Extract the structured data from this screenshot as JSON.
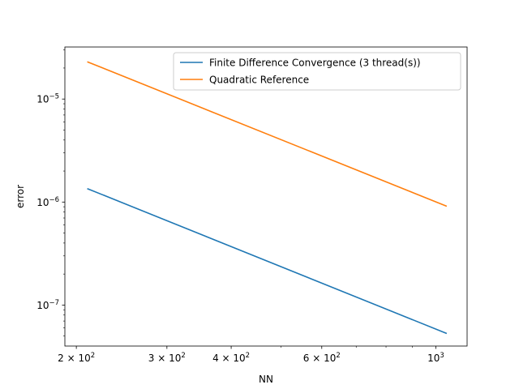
{
  "chart_data": {
    "type": "line",
    "xlabel": "NN",
    "ylabel": "error",
    "xscale": "log",
    "yscale": "log",
    "xlim": [
      190,
      1150
    ],
    "ylim": [
      4e-08,
      3.2e-05
    ],
    "grid": false,
    "legend_position": "top-right",
    "x_major_ticks": [
      {
        "value": 200,
        "mantissa": "2",
        "base": "10",
        "exp": "2"
      },
      {
        "value": 300,
        "mantissa": "3",
        "base": "10",
        "exp": "2"
      },
      {
        "value": 400,
        "mantissa": "4",
        "base": "10",
        "exp": "2"
      },
      {
        "value": 600,
        "mantissa": "6",
        "base": "10",
        "exp": "2"
      },
      {
        "value": 1000,
        "mantissa": "",
        "base": "10",
        "exp": "3"
      }
    ],
    "x_minor_ticks": [
      500,
      700,
      800,
      900
    ],
    "y_major_ticks": [
      {
        "value": 1e-07,
        "base": "10",
        "exp": "−7"
      },
      {
        "value": 1e-06,
        "base": "10",
        "exp": "−6"
      },
      {
        "value": 1e-05,
        "base": "10",
        "exp": "−5"
      }
    ],
    "y_minor_ticks": [
      5e-08,
      6e-08,
      7e-08,
      8e-08,
      9e-08,
      2e-07,
      3e-07,
      4e-07,
      5e-07,
      6e-07,
      7e-07,
      8e-07,
      9e-07,
      2e-06,
      3e-06,
      4e-06,
      5e-06,
      6e-06,
      7e-06,
      8e-06,
      9e-06,
      2e-05,
      3e-05
    ],
    "series": [
      {
        "name": "Finite Difference Convergence (3 thread(s))",
        "color": "#1f77b4",
        "x": [
          210,
          1050
        ],
        "y": [
          1.35e-06,
          5.3e-08
        ]
      },
      {
        "name": "Quadratic Reference",
        "color": "#ff7f0e",
        "x": [
          210,
          1050
        ],
        "y": [
          2.3e-05,
          9.1e-07
        ]
      }
    ]
  }
}
